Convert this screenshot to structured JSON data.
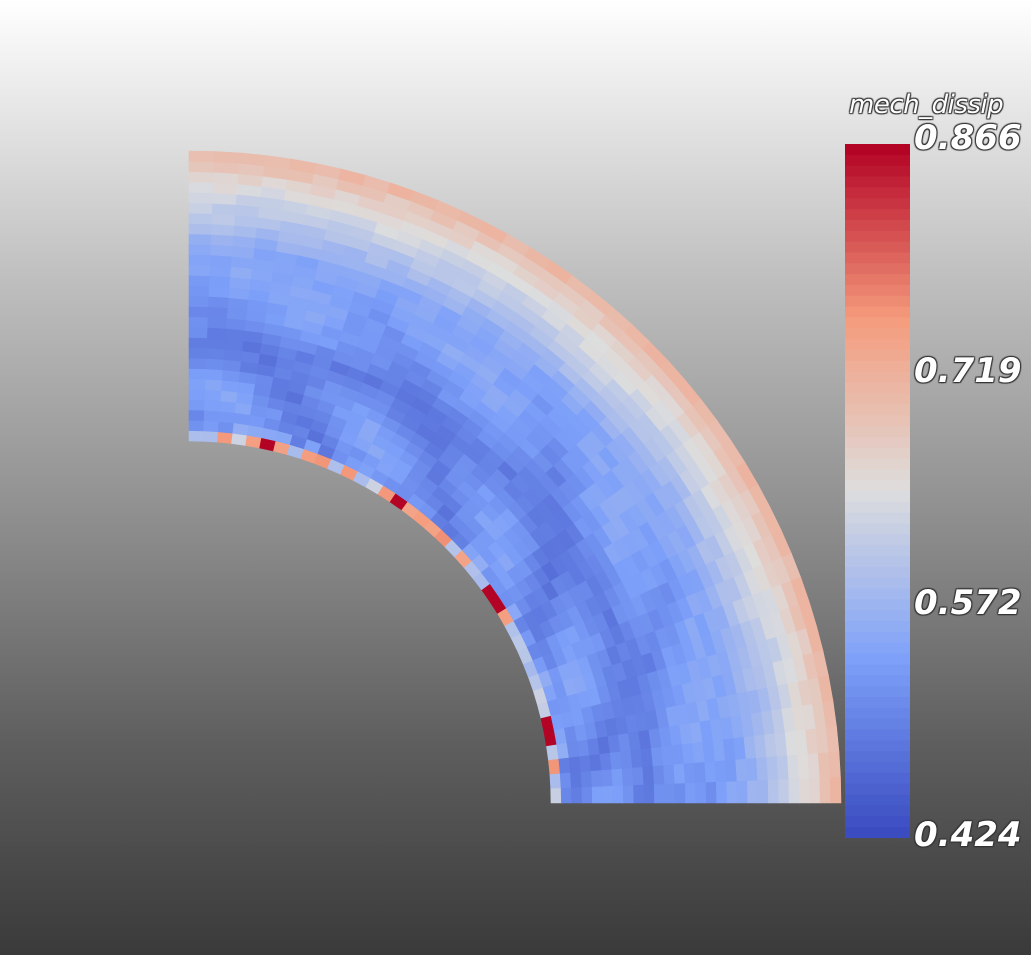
{
  "field_name": "mech_dissip",
  "colorbar": {
    "colormap": "coolwarm",
    "range": [
      0.424,
      0.866
    ],
    "labels": [
      "0.866",
      "0.719",
      "0.572",
      "0.424"
    ],
    "colors": {
      "low": "#3b4cc0",
      "mid": "#dddddd",
      "high": "#b40426"
    }
  },
  "mesh": {
    "shape": "quarter-annulus",
    "radial_elements": 28,
    "angular_elements": 40
  }
}
